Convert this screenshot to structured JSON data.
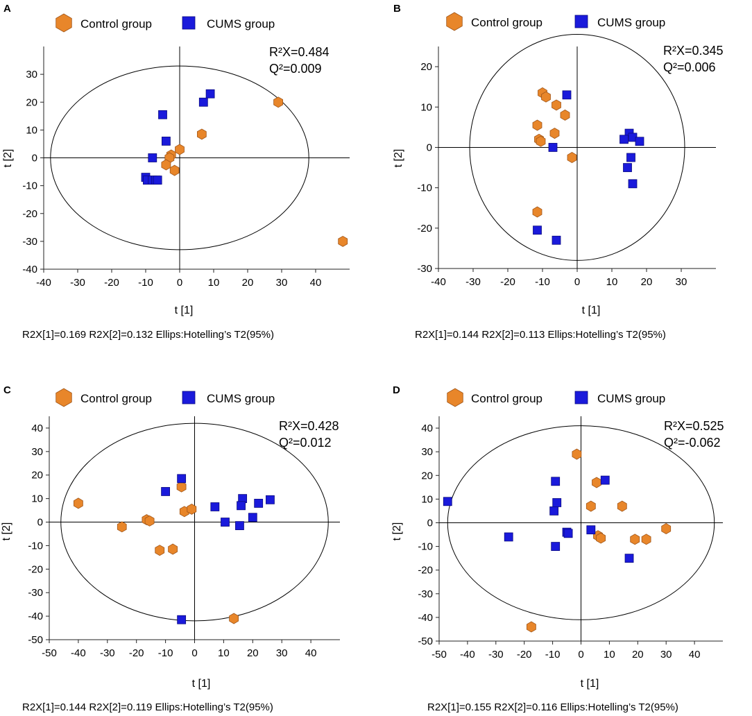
{
  "legend": {
    "control": "Control group",
    "cums": "CUMS  group"
  },
  "colors": {
    "control": "#e8862a",
    "control_edge": "#a0561a",
    "cums": "#1a1adb",
    "cums_edge": "#0a0a80"
  },
  "chart_data": [
    {
      "label": "A",
      "type": "scatter",
      "title": "",
      "xlabel": "t [1]",
      "ylabel": "t [2]",
      "xlim": [
        -40,
        50
      ],
      "ylim": [
        -40,
        40
      ],
      "xticks": [
        -40,
        -30,
        -20,
        -10,
        0,
        10,
        20,
        30,
        40
      ],
      "yticks": [
        -40,
        -30,
        -20,
        -10,
        0,
        10,
        20,
        30
      ],
      "r2x": "R²X=0.484",
      "q2": "Q²=0.009",
      "footer": "R2X[1]=0.169  R2X[2]=0.132 Ellips:Hotelling’s T2(95%)",
      "ellipse": {
        "rx": 38,
        "ry": 33
      },
      "series": [
        {
          "name": "Control group",
          "marker": "hexagon",
          "points": [
            [
              29,
              20
            ],
            [
              6.5,
              8.5
            ],
            [
              0,
              3
            ],
            [
              -2.5,
              1
            ],
            [
              -3,
              0
            ],
            [
              -4,
              -2.5
            ],
            [
              -1.5,
              -4.5
            ],
            [
              48,
              -30
            ]
          ]
        },
        {
          "name": "CUMS  group",
          "marker": "square",
          "points": [
            [
              9,
              23
            ],
            [
              7,
              20
            ],
            [
              -5,
              15.5
            ],
            [
              -4,
              6
            ],
            [
              -8,
              0
            ],
            [
              -10,
              -7
            ],
            [
              -9.5,
              -8
            ],
            [
              -8,
              -8
            ],
            [
              -7,
              -8
            ],
            [
              -6.5,
              -8
            ]
          ]
        }
      ]
    },
    {
      "label": "B",
      "type": "scatter",
      "title": "",
      "xlabel": "t [1]",
      "ylabel": "t [2]",
      "xlim": [
        -40,
        40
      ],
      "ylim": [
        -30,
        25
      ],
      "xticks": [
        -40,
        -30,
        -20,
        -10,
        0,
        10,
        20,
        30
      ],
      "yticks": [
        -30,
        -20,
        -10,
        0,
        10,
        20
      ],
      "r2x": "R²X=0.345",
      "q2": "Q²=0.006",
      "footer": "R2X[1]=0.144   R2X[2]=0.113 Ellips:Hotelling’s T2(95%)",
      "ellipse": {
        "rx": 31,
        "ry": 28
      },
      "series": [
        {
          "name": "Control group",
          "marker": "hexagon",
          "points": [
            [
              -10,
              13.5
            ],
            [
              -9,
              12.5
            ],
            [
              -6,
              10.5
            ],
            [
              -3.5,
              8
            ],
            [
              -11.5,
              5.5
            ],
            [
              -6.5,
              3.5
            ],
            [
              -11,
              2
            ],
            [
              -10.5,
              1.5
            ],
            [
              -1.5,
              -2.5
            ],
            [
              -11.5,
              -16
            ]
          ]
        },
        {
          "name": "CUMS  group",
          "marker": "square",
          "points": [
            [
              -3,
              13
            ],
            [
              -7,
              0
            ],
            [
              15,
              3.5
            ],
            [
              16,
              2.5
            ],
            [
              13.5,
              2
            ],
            [
              18,
              1.5
            ],
            [
              15.5,
              -2.5
            ],
            [
              14.5,
              -5
            ],
            [
              16,
              -9
            ],
            [
              -11.5,
              -20.5
            ],
            [
              -6,
              -23
            ]
          ]
        }
      ]
    },
    {
      "label": "C",
      "type": "scatter",
      "title": "",
      "xlabel": "t [1]",
      "ylabel": "t [2]",
      "xlim": [
        -50,
        50
      ],
      "ylim": [
        -50,
        45
      ],
      "xticks": [
        -50,
        -40,
        -30,
        -20,
        -10,
        0,
        10,
        20,
        30,
        40
      ],
      "yticks": [
        -50,
        -40,
        -30,
        -20,
        -10,
        0,
        10,
        20,
        30,
        40
      ],
      "r2x": "R²X=0.428",
      "q2": "Q²=0.012",
      "footer": "R2X[1]=0.144   R2X[2]=0.119 Ellips:Hotelling’s T2(95%)",
      "ellipse": {
        "rx": 46,
        "ry": 42
      },
      "series": [
        {
          "name": "Control group",
          "marker": "hexagon",
          "points": [
            [
              -40,
              8
            ],
            [
              -25,
              -2
            ],
            [
              -16.5,
              1
            ],
            [
              -15.5,
              0.5
            ],
            [
              -12,
              -12
            ],
            [
              -7.5,
              -11.5
            ],
            [
              -4.5,
              15
            ],
            [
              -3.5,
              4.5
            ],
            [
              -1,
              5.5
            ],
            [
              13.5,
              -41
            ]
          ]
        },
        {
          "name": "CUMS  group",
          "marker": "square",
          "points": [
            [
              -4.5,
              18.5
            ],
            [
              -10,
              13
            ],
            [
              7,
              6.5
            ],
            [
              10.5,
              0
            ],
            [
              15.5,
              -1.5
            ],
            [
              16.5,
              10
            ],
            [
              16,
              7
            ],
            [
              22,
              8
            ],
            [
              20,
              2
            ],
            [
              26,
              9.5
            ],
            [
              -4.5,
              -41.5
            ]
          ]
        }
      ]
    },
    {
      "label": "D",
      "type": "scatter",
      "title": "",
      "xlabel": "t [1]",
      "ylabel": "t [2]",
      "xlim": [
        -50,
        50
      ],
      "ylim": [
        -50,
        45
      ],
      "xticks": [
        -50,
        -40,
        -30,
        -20,
        -10,
        0,
        10,
        20,
        30,
        40
      ],
      "yticks": [
        -50,
        -40,
        -30,
        -20,
        -10,
        0,
        10,
        20,
        30,
        40
      ],
      "r2x": "R²X=0.525",
      "q2": "Q²=-0.062",
      "footer": "R2X[1]=0.155   R2X[2]=0.116 Ellips:Hotelling’s T2(95%)",
      "ellipse": {
        "rx": 47,
        "ry": 41
      },
      "series": [
        {
          "name": "Control group",
          "marker": "hexagon",
          "points": [
            [
              -1.5,
              29
            ],
            [
              5.5,
              17
            ],
            [
              3.5,
              7
            ],
            [
              14.5,
              7
            ],
            [
              6,
              -5.5
            ],
            [
              7,
              -6.5
            ],
            [
              19,
              -7
            ],
            [
              23,
              -7
            ],
            [
              30,
              -2.5
            ],
            [
              -17.5,
              -44
            ]
          ]
        },
        {
          "name": "CUMS  group",
          "marker": "square",
          "points": [
            [
              -47,
              9
            ],
            [
              -9,
              17.5
            ],
            [
              8.5,
              18
            ],
            [
              -8.5,
              8.5
            ],
            [
              -9.5,
              5
            ],
            [
              -25.5,
              -6
            ],
            [
              -5,
              -4
            ],
            [
              -4.5,
              -4.5
            ],
            [
              3.5,
              -3
            ],
            [
              -9,
              -10
            ],
            [
              17,
              -15
            ]
          ]
        }
      ]
    }
  ]
}
